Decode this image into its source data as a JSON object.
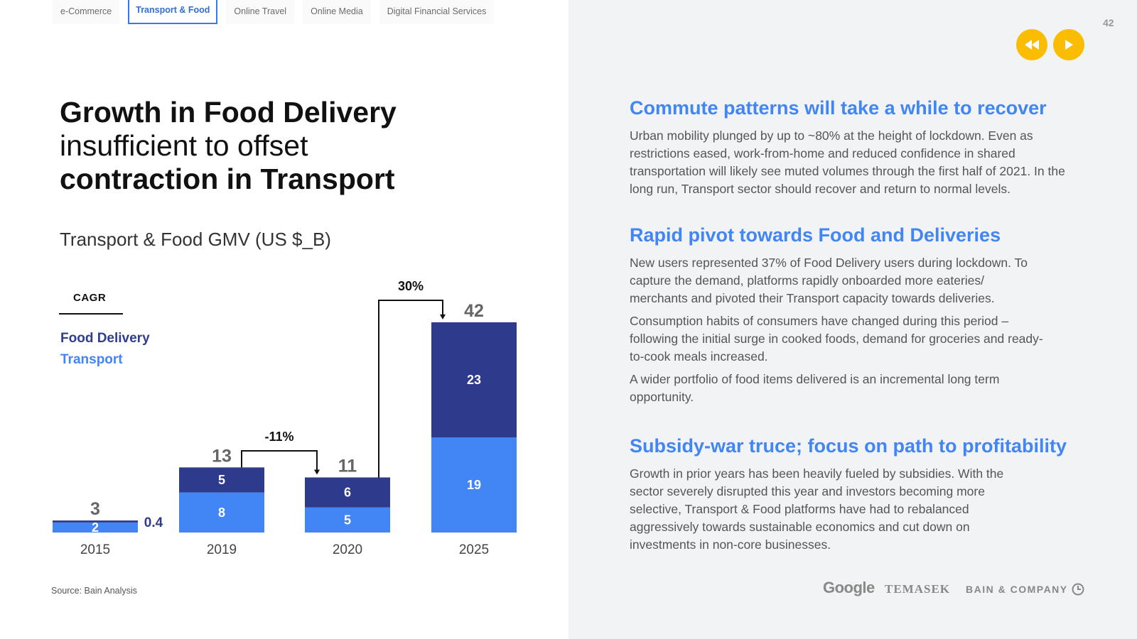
{
  "tabs": [
    {
      "label": "e-Commerce",
      "active": false
    },
    {
      "label": "Transport & Food",
      "active": true
    },
    {
      "label": "Online Travel",
      "active": false
    },
    {
      "label": "Online Media",
      "active": false
    },
    {
      "label": "Digital Financial Services",
      "active": false
    }
  ],
  "page_number": "42",
  "headline": {
    "line1": "Growth in Food Delivery",
    "line2": "insufficient to offset",
    "line3": "contraction in Transport"
  },
  "chart_title": "Transport & Food GMV (US $_B)",
  "legend": {
    "cagr_label": "CAGR",
    "food_delivery": "Food Delivery",
    "transport": "Transport"
  },
  "source": "Source: Bain Analysis",
  "colors": {
    "food_delivery": "#2e3a8c",
    "transport": "#4285f4",
    "accent": "#fbbc04",
    "heading": "#4285f4"
  },
  "chart_data": {
    "type": "bar",
    "stacked": true,
    "title": "Transport & Food GMV (US $_B)",
    "categories": [
      "2015",
      "2019",
      "2020",
      "2025"
    ],
    "series": [
      {
        "name": "Transport",
        "values": [
          2,
          8,
          5,
          19
        ],
        "labels": [
          "2",
          "8",
          "5",
          "19"
        ]
      },
      {
        "name": "Food Delivery",
        "values": [
          0.4,
          5,
          6,
          23
        ],
        "labels": [
          "0.4",
          "5",
          "6",
          "23"
        ]
      }
    ],
    "totals": [
      "3",
      "13",
      "11",
      "42"
    ],
    "cagr_annotations": [
      {
        "from": "2019",
        "to": "2020",
        "label": "-11%"
      },
      {
        "from": "2020",
        "to": "2025",
        "label": "30%"
      }
    ],
    "ylim": [
      0,
      42
    ]
  },
  "sections": [
    {
      "heading": "Commute patterns will take a while to recover",
      "paragraphs": [
        "Urban mobility plunged by up to ~80% at the height of lockdown. Even as restrictions eased, work-from-home and reduced confidence in shared transportation will likely see muted volumes through the first half of 2021. In the long run, Transport sector should recover and return to normal levels."
      ]
    },
    {
      "heading": "Rapid pivot towards Food and Deliveries",
      "paragraphs": [
        "New users represented 37% of Food Delivery users during lockdown. To capture the demand, platforms rapidly onboarded more eateries/ merchants and pivoted their Transport capacity towards deliveries.",
        "Consumption habits of consumers have changed during this period – following the initial surge in cooked foods, demand for groceries and ready-to-cook meals increased.",
        "A wider portfolio of food items delivered is an incremental long term opportunity."
      ]
    },
    {
      "heading": "Subsidy-war truce; focus on path to profitability",
      "paragraphs": [
        "Growth in prior years has been heavily fueled by subsidies. With the sector severely disrupted this year and investors becoming more selective, Transport & Food platforms have had to rebalanced aggressively towards sustainable economics and cut down on investments in non-core businesses."
      ]
    }
  ],
  "logos": {
    "google": "Google",
    "temasek": "TEMASEK",
    "bain": "BAIN & COMPANY"
  },
  "nav": {
    "prev_icon": "rewind-icon",
    "next_icon": "play-icon"
  }
}
